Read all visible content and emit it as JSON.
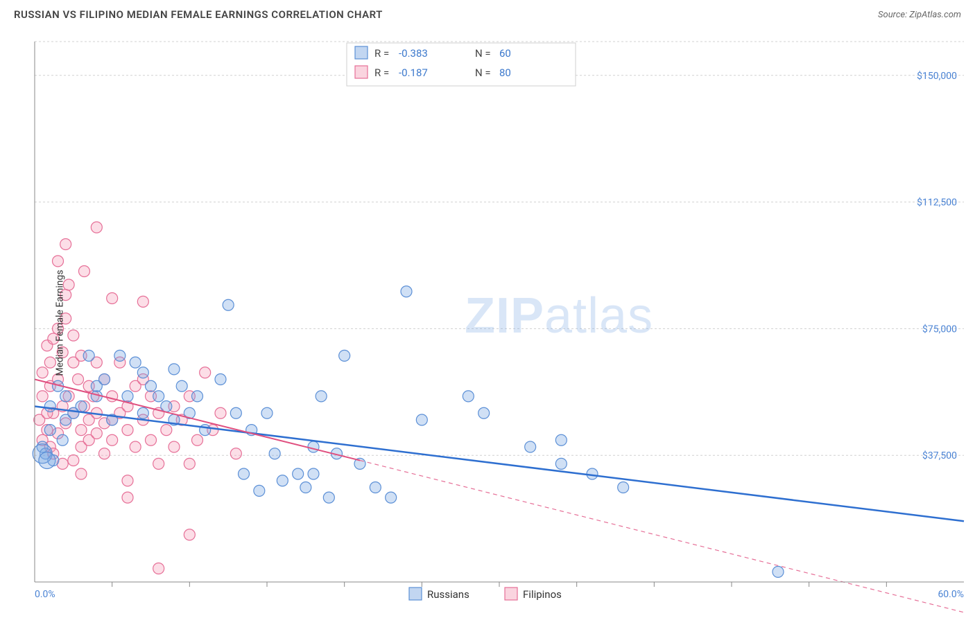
{
  "title": "RUSSIAN VS FILIPINO MEDIAN FEMALE EARNINGS CORRELATION CHART",
  "source_label": "Source: ZipAtlas.com",
  "ylabel": "Median Female Earnings",
  "watermark": {
    "part1": "ZIP",
    "part2": "atlas"
  },
  "chart": {
    "type": "scatter",
    "background_color": "#ffffff",
    "grid_color": "#d0d0d0",
    "xlim": [
      0,
      60
    ],
    "ylim": [
      0,
      160000
    ],
    "xtick_labels": [
      "0.0%",
      "60.0%"
    ],
    "xtick_minor_positions": [
      5,
      10,
      15,
      20,
      25,
      30,
      35,
      40,
      45,
      50,
      55
    ],
    "yticks": [
      37500,
      75000,
      112500,
      150000
    ],
    "ytick_labels": [
      "$37,500",
      "$75,000",
      "$112,500",
      "$150,000"
    ],
    "point_radius": 8,
    "colors": {
      "blue_fill": "rgba(120,165,225,0.35)",
      "blue_stroke": "#5b8fd6",
      "pink_fill": "rgba(245,160,185,0.35)",
      "pink_stroke": "#e66f97",
      "trend_blue": "#2e6fd0",
      "trend_pink": "#e04f7f",
      "tick_label": "#4a83d4"
    },
    "stats_legend": {
      "series": [
        {
          "swatch": "blue",
          "r_label": "R =",
          "r_value": "-0.383",
          "n_label": "N =",
          "n_value": "60"
        },
        {
          "swatch": "pink",
          "r_label": "R =",
          "r_value": "-0.187",
          "n_label": "N =",
          "n_value": "80"
        }
      ]
    },
    "bottom_legend": [
      {
        "swatch": "blue",
        "label": "Russians"
      },
      {
        "swatch": "pink",
        "label": "Filipinos"
      }
    ],
    "trend_lines": {
      "blue": {
        "x1": 0,
        "y1": 52000,
        "x2": 60,
        "y2": 18000
      },
      "pink_solid": {
        "x1": 0,
        "y1": 60000,
        "x2": 21,
        "y2": 36000
      },
      "pink_dashed": {
        "x1": 21,
        "y1": 36000,
        "x2": 60,
        "y2": -9000
      }
    },
    "series_blue": [
      [
        0.5,
        40000
      ],
      [
        0.7,
        38000
      ],
      [
        1,
        45000
      ],
      [
        1,
        52000
      ],
      [
        1.2,
        36000
      ],
      [
        1.5,
        58000
      ],
      [
        1.8,
        42000
      ],
      [
        2,
        55000
      ],
      [
        2,
        48000
      ],
      [
        2.5,
        50000
      ],
      [
        3,
        52000
      ],
      [
        3.5,
        67000
      ],
      [
        4,
        55000
      ],
      [
        4,
        58000
      ],
      [
        4.5,
        60000
      ],
      [
        5,
        48000
      ],
      [
        5.5,
        67000
      ],
      [
        6,
        55000
      ],
      [
        6.5,
        65000
      ],
      [
        7,
        50000
      ],
      [
        7,
        62000
      ],
      [
        7.5,
        58000
      ],
      [
        8,
        55000
      ],
      [
        8.5,
        52000
      ],
      [
        9,
        48000
      ],
      [
        9,
        63000
      ],
      [
        9.5,
        58000
      ],
      [
        10,
        50000
      ],
      [
        10.5,
        55000
      ],
      [
        11,
        45000
      ],
      [
        12,
        60000
      ],
      [
        12.5,
        82000
      ],
      [
        13,
        50000
      ],
      [
        13.5,
        32000
      ],
      [
        14,
        45000
      ],
      [
        14.5,
        27000
      ],
      [
        15,
        50000
      ],
      [
        15.5,
        38000
      ],
      [
        16,
        30000
      ],
      [
        17,
        32000
      ],
      [
        17.5,
        28000
      ],
      [
        18,
        40000
      ],
      [
        18,
        32000
      ],
      [
        18.5,
        55000
      ],
      [
        19,
        25000
      ],
      [
        19.5,
        38000
      ],
      [
        20,
        67000
      ],
      [
        21,
        35000
      ],
      [
        22,
        28000
      ],
      [
        23,
        25000
      ],
      [
        24,
        86000
      ],
      [
        25,
        48000
      ],
      [
        28,
        55000
      ],
      [
        29,
        50000
      ],
      [
        32,
        40000
      ],
      [
        34,
        42000
      ],
      [
        36,
        32000
      ],
      [
        38,
        28000
      ],
      [
        48,
        3000
      ],
      [
        34,
        35000
      ]
    ],
    "series_pink": [
      [
        0.3,
        48000
      ],
      [
        0.5,
        55000
      ],
      [
        0.5,
        62000
      ],
      [
        0.8,
        45000
      ],
      [
        0.8,
        70000
      ],
      [
        1,
        58000
      ],
      [
        1,
        40000
      ],
      [
        1,
        65000
      ],
      [
        1.2,
        50000
      ],
      [
        1.2,
        72000
      ],
      [
        1.5,
        44000
      ],
      [
        1.5,
        60000
      ],
      [
        1.5,
        75000
      ],
      [
        1.5,
        95000
      ],
      [
        1.8,
        52000
      ],
      [
        1.8,
        68000
      ],
      [
        2,
        47000
      ],
      [
        2,
        78000
      ],
      [
        2,
        100000
      ],
      [
        2,
        85000
      ],
      [
        2.2,
        55000
      ],
      [
        2.2,
        88000
      ],
      [
        2.5,
        50000
      ],
      [
        2.5,
        65000
      ],
      [
        2.5,
        73000
      ],
      [
        2.8,
        60000
      ],
      [
        3,
        45000
      ],
      [
        3,
        67000
      ],
      [
        3,
        40000
      ],
      [
        3.2,
        52000
      ],
      [
        3.2,
        92000
      ],
      [
        3.5,
        58000
      ],
      [
        3.5,
        48000
      ],
      [
        3.5,
        42000
      ],
      [
        3.8,
        55000
      ],
      [
        4,
        65000
      ],
      [
        4,
        50000
      ],
      [
        4,
        44000
      ],
      [
        4,
        105000
      ],
      [
        4.5,
        60000
      ],
      [
        4.5,
        38000
      ],
      [
        4.5,
        47000
      ],
      [
        5,
        55000
      ],
      [
        5,
        84000
      ],
      [
        5,
        48000
      ],
      [
        5,
        42000
      ],
      [
        5.5,
        50000
      ],
      [
        5.5,
        65000
      ],
      [
        6,
        45000
      ],
      [
        6,
        52000
      ],
      [
        6,
        25000
      ],
      [
        6.5,
        58000
      ],
      [
        6.5,
        40000
      ],
      [
        7,
        48000
      ],
      [
        7,
        83000
      ],
      [
        7,
        60000
      ],
      [
        7.5,
        55000
      ],
      [
        7.5,
        42000
      ],
      [
        8,
        50000
      ],
      [
        8,
        35000
      ],
      [
        8,
        4000
      ],
      [
        8.5,
        45000
      ],
      [
        9,
        40000
      ],
      [
        9,
        52000
      ],
      [
        9.5,
        48000
      ],
      [
        10,
        35000
      ],
      [
        10,
        55000
      ],
      [
        10.5,
        42000
      ],
      [
        11,
        62000
      ],
      [
        11.5,
        45000
      ],
      [
        12,
        50000
      ],
      [
        13,
        38000
      ],
      [
        10,
        14000
      ],
      [
        6,
        30000
      ],
      [
        3,
        32000
      ],
      [
        2.5,
        36000
      ],
      [
        1.8,
        35000
      ],
      [
        1.2,
        38000
      ],
      [
        0.8,
        50000
      ],
      [
        0.5,
        42000
      ]
    ]
  }
}
